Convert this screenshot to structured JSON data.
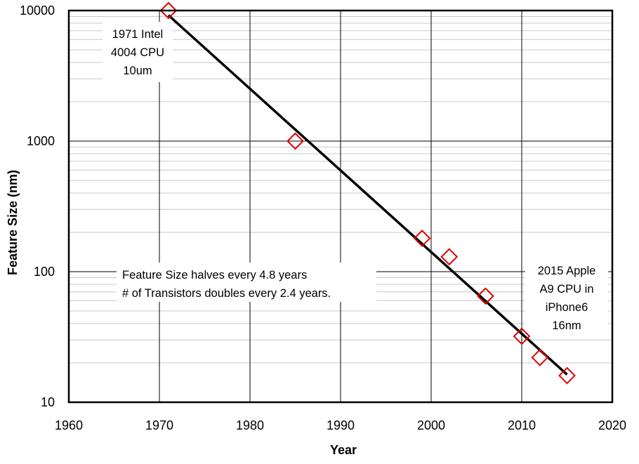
{
  "chart_data": {
    "type": "scatter",
    "xlabel": "Year",
    "ylabel": "Feature Size (nm)",
    "xlim": [
      1960,
      2020
    ],
    "ylim": [
      10,
      10000
    ],
    "y_scale": "log",
    "grid": true,
    "x_ticks": [
      "1960",
      "1970",
      "1980",
      "1990",
      "2000",
      "2010",
      "2020"
    ],
    "y_ticks": [
      "10",
      "100",
      "1000",
      "10000"
    ],
    "series": [
      {
        "marker": "diamond",
        "color": "#e00000",
        "points": [
          {
            "x": 1971,
            "y": 10000
          },
          {
            "x": 1985,
            "y": 1000
          },
          {
            "x": 1999,
            "y": 180
          },
          {
            "x": 2002,
            "y": 130
          },
          {
            "x": 2006,
            "y": 65
          },
          {
            "x": 2010,
            "y": 32
          },
          {
            "x": 2012,
            "y": 22
          },
          {
            "x": 2015,
            "y": 16
          }
        ]
      }
    ],
    "trendline": {
      "color": "#000000",
      "points": [
        {
          "x": 1971,
          "y": 9200
        },
        {
          "x": 2015,
          "y": 16.3
        }
      ]
    },
    "annotations": [
      {
        "lines": [
          "1971 Intel",
          "4004 CPU",
          "10um"
        ]
      },
      {
        "lines": [
          "Feature Size halves every 4.8 years",
          "# of Transistors doubles every 2.4 years."
        ]
      },
      {
        "lines": [
          "2015 Apple",
          "A9 CPU in",
          "iPhone6",
          "16nm"
        ]
      }
    ]
  }
}
